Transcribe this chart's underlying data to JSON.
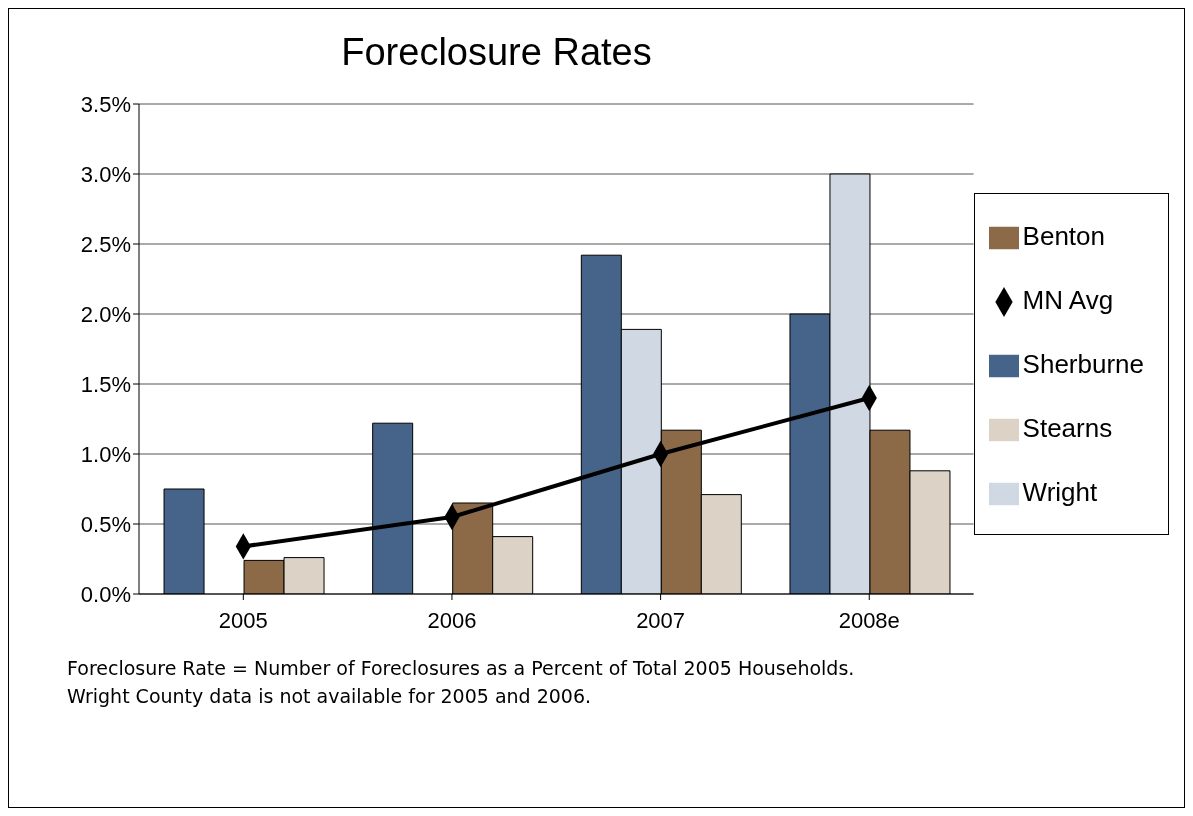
{
  "chart_data": {
    "type": "bar",
    "title": "Foreclosure Rates",
    "categories": [
      "2005",
      "2006",
      "2007",
      "2008e"
    ],
    "series": [
      {
        "name": "Sherburne",
        "color": "#46648a",
        "values": [
          0.75,
          1.22,
          2.42,
          2.0
        ]
      },
      {
        "name": "Wright",
        "color": "#d0d8e4",
        "values": [
          null,
          null,
          1.89,
          3.0
        ]
      },
      {
        "name": "Benton",
        "color": "#8c6a48",
        "values": [
          0.24,
          0.65,
          1.17,
          1.17
        ]
      },
      {
        "name": "Stearns",
        "color": "#dcd2c6",
        "values": [
          0.26,
          0.41,
          0.71,
          0.88
        ]
      },
      {
        "name": "MN Avg",
        "color": "#000000",
        "type": "line",
        "marker": "diamond",
        "values": [
          0.34,
          0.55,
          1.0,
          1.4
        ]
      }
    ],
    "ylim": [
      0,
      3.5
    ],
    "yticks": [
      {
        "value": 0,
        "label": "0.0%"
      },
      {
        "value": 0.5,
        "label": "0.5%"
      },
      {
        "value": 1,
        "label": "1.0%"
      },
      {
        "value": 1.5,
        "label": "1.5%"
      },
      {
        "value": 2,
        "label": "2.0%"
      },
      {
        "value": 2.5,
        "label": "2.5%"
      },
      {
        "value": 3,
        "label": "3.0%"
      },
      {
        "value": 3.5,
        "label": "3.5%"
      }
    ],
    "grid": "y",
    "legend": "right",
    "annotations": [
      "Foreclosure Rate = Number of Foreclosures as a Percent of Total 2005 Households.",
      "Wright County data is not available for 2005 and 2006."
    ]
  }
}
